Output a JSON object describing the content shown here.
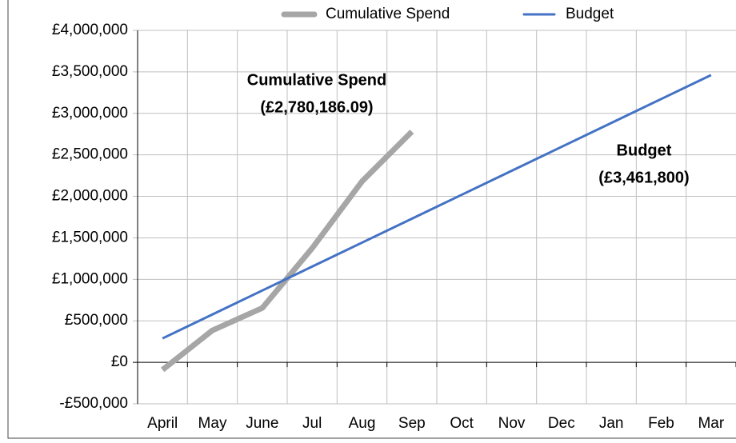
{
  "chart_data": {
    "type": "line",
    "categories": [
      "April",
      "May",
      "June",
      "Jul",
      "Aug",
      "Sep",
      "Oct",
      "Nov",
      "Dec",
      "Jan",
      "Feb",
      "Mar"
    ],
    "series": [
      {
        "name": "Cumulative Spend",
        "color": "#a6a6a6",
        "values": [
          -90000,
          385000,
          654000,
          1375000,
          2180000,
          2780186.09,
          null,
          null,
          null,
          null,
          null,
          null
        ]
      },
      {
        "name": "Budget",
        "color": "#4472c4",
        "values": [
          288483,
          576967,
          865450,
          1153933,
          1442417,
          1730900,
          2019383,
          2307867,
          2596350,
          2884833,
          3173317,
          3461800
        ]
      }
    ],
    "annotations": [
      {
        "lines": [
          "Cumulative Spend",
          "(£2,780,186.09)"
        ]
      },
      {
        "lines": [
          "Budget",
          "(£3,461,800)"
        ]
      }
    ],
    "ylim": [
      -500000,
      4000000
    ],
    "yticks": [
      {
        "value": -500000,
        "label": "-£500,000"
      },
      {
        "value": 0,
        "label": "£0"
      },
      {
        "value": 500000,
        "label": "£500,000"
      },
      {
        "value": 1000000,
        "label": "£1,000,000"
      },
      {
        "value": 1500000,
        "label": "£1,500,000"
      },
      {
        "value": 2000000,
        "label": "£2,000,000"
      },
      {
        "value": 2500000,
        "label": "£2,500,000"
      },
      {
        "value": 3000000,
        "label": "£3,000,000"
      },
      {
        "value": 3500000,
        "label": "£3,500,000"
      },
      {
        "value": 4000000,
        "label": "£4,000,000"
      }
    ],
    "grid": true,
    "legend": "top"
  }
}
